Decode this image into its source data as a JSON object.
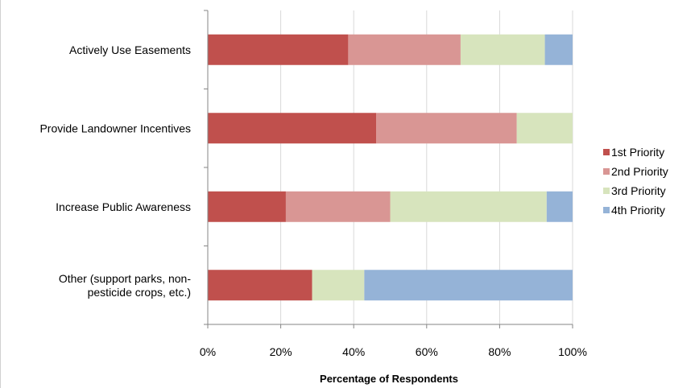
{
  "chart_data": {
    "type": "bar",
    "orientation": "horizontal",
    "stacked": "percent",
    "categories": [
      "Actively Use Easements",
      "Provide Landowner Incentives",
      "Increase Public Awareness",
      "Other (support parks, non-pesticide crops, etc.)"
    ],
    "category_label_lines": [
      [
        "Actively Use Easements"
      ],
      [
        "Provide Landowner Incentives"
      ],
      [
        "Increase Public Awareness"
      ],
      [
        "Other (support parks, non-",
        "pesticide crops, etc.)"
      ]
    ],
    "series": [
      {
        "name": "1st Priority",
        "color": "#c0504d",
        "values": [
          38.5,
          46.2,
          21.4,
          28.6
        ]
      },
      {
        "name": "2nd Priority",
        "color": "#d99694",
        "values": [
          30.8,
          38.5,
          28.6,
          0
        ]
      },
      {
        "name": "3rd Priority",
        "color": "#d7e4bd",
        "values": [
          23.1,
          15.3,
          42.9,
          14.3
        ]
      },
      {
        "name": "4th Priority",
        "color": "#95b3d7",
        "values": [
          7.6,
          0,
          7.1,
          57.1
        ]
      }
    ],
    "xlim": [
      0,
      100
    ],
    "xticks": [
      "0%",
      "20%",
      "40%",
      "60%",
      "80%",
      "100%"
    ],
    "xlabel": "Percentage of Respondents",
    "ylabel": "",
    "title": "",
    "grid": true,
    "legend_position": "right"
  }
}
